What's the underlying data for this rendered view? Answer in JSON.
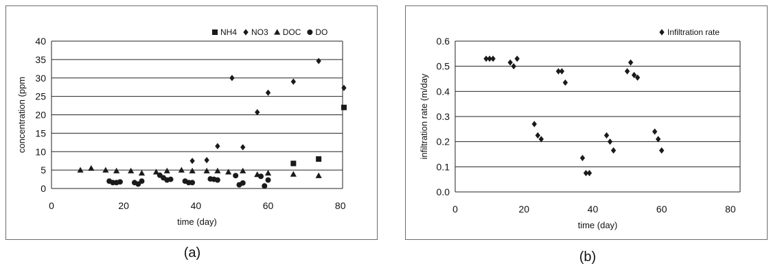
{
  "panel_captions": [
    "(a)",
    "(b)"
  ],
  "chart_data": [
    {
      "type": "scatter",
      "title": "",
      "xlabel": "time (day)",
      "ylabel": "concentration (ppm",
      "xlim": [
        0,
        85
      ],
      "ylim": [
        0,
        40
      ],
      "x_ticks": [
        0,
        20,
        40,
        60,
        80
      ],
      "y_ticks": [
        0,
        5,
        10,
        15,
        20,
        25,
        30,
        35,
        40
      ],
      "grid": "horizontal",
      "legend": "top-right",
      "series": [
        {
          "name": "NH4",
          "marker": "square",
          "color": "#1a1a1a",
          "points": [
            [
              67,
              6.8
            ],
            [
              74,
              8.0
            ],
            [
              81,
              22.0
            ]
          ]
        },
        {
          "name": "NO3",
          "marker": "diamond",
          "color": "#1a1a1a",
          "points": [
            [
              39,
              7.5
            ],
            [
              43,
              7.7
            ],
            [
              46,
              11.5
            ],
            [
              50,
              30.0
            ],
            [
              53,
              11.2
            ],
            [
              57,
              20.7
            ],
            [
              60,
              26.0
            ],
            [
              67,
              29.0
            ],
            [
              74,
              34.6
            ],
            [
              81,
              27.3
            ]
          ]
        },
        {
          "name": "DOC",
          "marker": "triangle",
          "color": "#1a1a1a",
          "points": [
            [
              8,
              5.0
            ],
            [
              11,
              5.5
            ],
            [
              15,
              5.0
            ],
            [
              18,
              4.8
            ],
            [
              22,
              4.8
            ],
            [
              25,
              4.2
            ],
            [
              29,
              4.5
            ],
            [
              32,
              4.8
            ],
            [
              36,
              5.0
            ],
            [
              39,
              4.8
            ],
            [
              43,
              4.8
            ],
            [
              46,
              4.8
            ],
            [
              49,
              4.5
            ],
            [
              53,
              4.8
            ],
            [
              57,
              3.8
            ],
            [
              60,
              4.2
            ],
            [
              67,
              3.9
            ],
            [
              74,
              3.5
            ]
          ]
        },
        {
          "name": "DO",
          "marker": "circle",
          "color": "#1a1a1a",
          "points": [
            [
              16,
              2.0
            ],
            [
              17,
              1.6
            ],
            [
              18,
              1.6
            ],
            [
              19,
              1.8
            ],
            [
              23,
              1.6
            ],
            [
              24,
              1.2
            ],
            [
              25,
              2.0
            ],
            [
              30,
              3.6
            ],
            [
              31,
              2.9
            ],
            [
              32,
              2.3
            ],
            [
              33,
              2.5
            ],
            [
              37,
              2.0
            ],
            [
              38,
              1.6
            ],
            [
              39,
              1.6
            ],
            [
              44,
              2.6
            ],
            [
              45,
              2.5
            ],
            [
              46,
              2.3
            ],
            [
              51,
              3.5
            ],
            [
              52,
              1.0
            ],
            [
              53,
              1.5
            ],
            [
              58,
              3.3
            ],
            [
              59,
              0.7
            ],
            [
              60,
              2.3
            ]
          ]
        }
      ]
    },
    {
      "type": "scatter",
      "title": "",
      "xlabel": "time (day)",
      "ylabel": "infiltration rate (m/day",
      "xlim": [
        0,
        85
      ],
      "ylim": [
        0,
        0.6
      ],
      "x_ticks": [
        0,
        20,
        40,
        60,
        80
      ],
      "y_ticks": [
        "0.0",
        "0.1",
        "0.2",
        "0.3",
        "0.4",
        "0.5",
        "0.6"
      ],
      "grid": "horizontal",
      "legend": "top-right",
      "series": [
        {
          "name": "Infiltration rate",
          "marker": "diamond",
          "color": "#1a1a1a",
          "points": [
            [
              9,
              0.53
            ],
            [
              10,
              0.53
            ],
            [
              11,
              0.53
            ],
            [
              16,
              0.515
            ],
            [
              17,
              0.5
            ],
            [
              18,
              0.53
            ],
            [
              23,
              0.27
            ],
            [
              24,
              0.225
            ],
            [
              25,
              0.21
            ],
            [
              30,
              0.48
            ],
            [
              31,
              0.48
            ],
            [
              32,
              0.435
            ],
            [
              37,
              0.135
            ],
            [
              38,
              0.075
            ],
            [
              39,
              0.075
            ],
            [
              44,
              0.225
            ],
            [
              45,
              0.2
            ],
            [
              46,
              0.165
            ],
            [
              50,
              0.48
            ],
            [
              51,
              0.515
            ],
            [
              52,
              0.465
            ],
            [
              53,
              0.455
            ],
            [
              58,
              0.24
            ],
            [
              59,
              0.21
            ],
            [
              60,
              0.165
            ]
          ]
        }
      ]
    }
  ]
}
